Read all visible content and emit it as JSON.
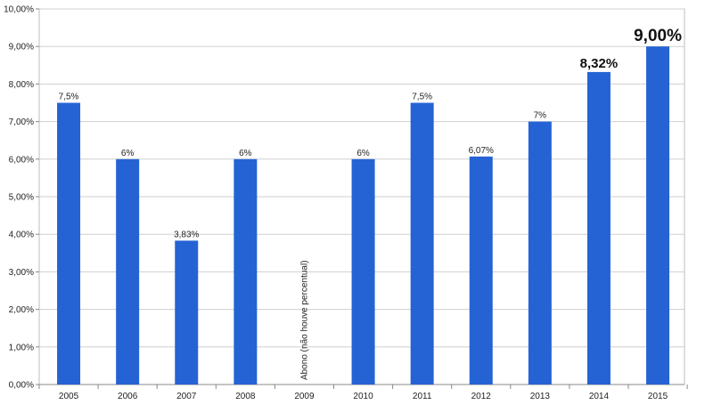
{
  "chart_data": {
    "type": "bar",
    "title": "",
    "xlabel": "",
    "ylabel": "",
    "ylim": [
      0,
      10
    ],
    "y_tick_values": [
      0,
      1,
      2,
      3,
      4,
      5,
      6,
      7,
      8,
      9,
      10
    ],
    "y_tick_labels": [
      "0,00%",
      "1,00%",
      "2,00%",
      "3,00%",
      "4,00%",
      "5,00%",
      "6,00%",
      "7,00%",
      "8,00%",
      "9,00%",
      "10,00%"
    ],
    "grid": true,
    "legend": "none",
    "bar_color": "#2563d4",
    "categories": [
      "2005",
      "2006",
      "2007",
      "2008",
      "2009",
      "2010",
      "2011",
      "2012",
      "2013",
      "2014",
      "2015"
    ],
    "values": [
      7.5,
      6,
      3.83,
      6,
      null,
      6,
      7.5,
      6.07,
      7,
      8.32,
      9
    ],
    "data_labels": [
      "7,5%",
      "6%",
      "3,83%",
      "6%",
      "",
      "6%",
      "7,5%",
      "6,07%",
      "7%",
      "8,32%",
      "9,00%"
    ],
    "annotations": [
      {
        "category": "2009",
        "text": "Abono (não houve percentual)"
      }
    ]
  }
}
